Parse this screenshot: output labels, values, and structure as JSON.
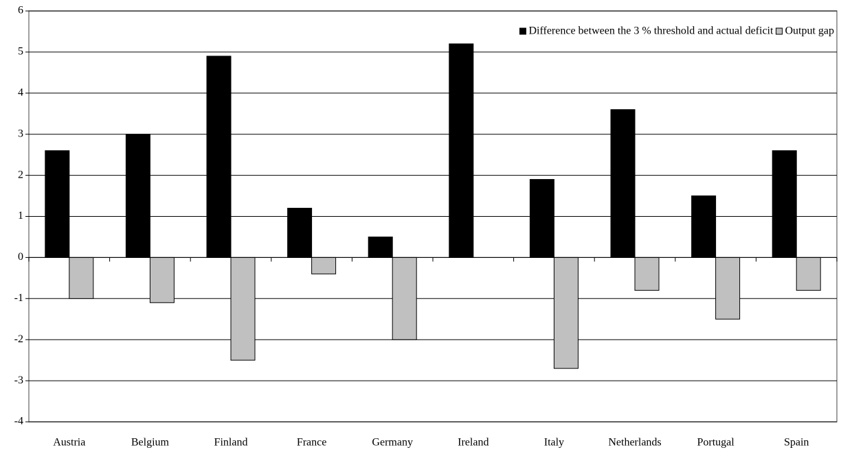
{
  "chart_data": {
    "type": "bar",
    "categories": [
      "Austria",
      "Belgium",
      "Finland",
      "France",
      "Germany",
      "Ireland",
      "Italy",
      "Netherlands",
      "Portugal",
      "Spain"
    ],
    "series": [
      {
        "name": "Difference between the 3 % threshold and actual deficit",
        "color": "#000000",
        "values": [
          2.6,
          3.0,
          4.9,
          1.2,
          0.5,
          5.2,
          1.9,
          3.6,
          1.5,
          2.6
        ]
      },
      {
        "name": "Output gap",
        "color": "#c0c0c0",
        "values": [
          -1.0,
          -1.1,
          -2.5,
          -0.4,
          -2.0,
          null,
          -2.7,
          -0.8,
          -1.5,
          -0.8
        ]
      }
    ],
    "ylim": [
      -4,
      6
    ],
    "yticks": [
      -4,
      -3,
      -2,
      -1,
      0,
      1,
      2,
      3,
      4,
      5,
      6
    ],
    "grid": true,
    "legend": "upper right"
  }
}
